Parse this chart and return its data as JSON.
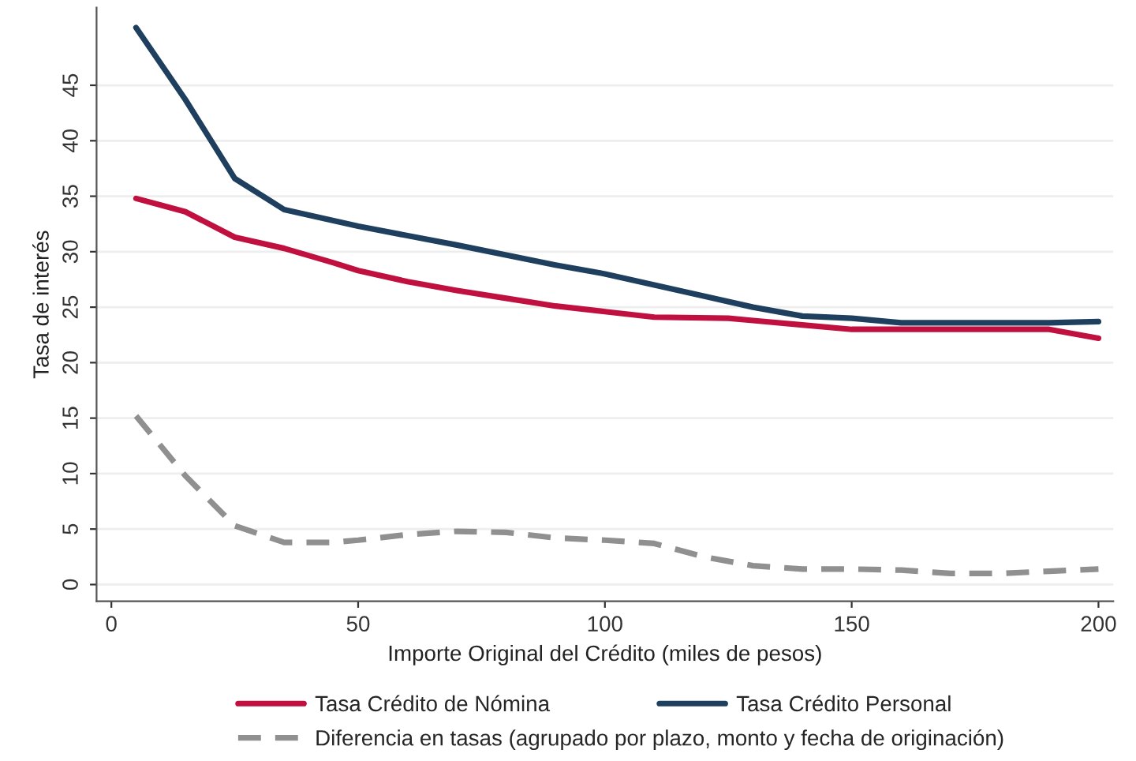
{
  "chart_data": {
    "type": "line",
    "xlabel": "Importe Original del Crédito (miles de pesos)",
    "ylabel": "Tasa de interés",
    "xlim": [
      -3,
      203
    ],
    "xticks": [
      0,
      50,
      100,
      150,
      200
    ],
    "ylim": [
      -1.5,
      52
    ],
    "yticks": [
      0,
      5,
      10,
      15,
      20,
      25,
      30,
      35,
      40,
      45
    ],
    "grid": "y",
    "legend": "bottom",
    "marker": "none",
    "series": [
      {
        "name": "Tasa Crédito de Nómina",
        "color": "#c0103f",
        "line_style": "solid",
        "x": [
          5,
          15,
          25,
          35,
          45,
          50,
          60,
          70,
          80,
          90,
          100,
          110,
          125,
          130,
          140,
          150,
          170,
          190,
          200
        ],
        "values": [
          34.8,
          33.6,
          31.3,
          30.3,
          29.0,
          28.3,
          27.3,
          26.5,
          25.8,
          25.1,
          24.6,
          24.1,
          24.0,
          23.8,
          23.4,
          23.0,
          23.0,
          23.0,
          22.2
        ]
      },
      {
        "name": "Tasa Crédito Personal",
        "color": "#1f3f5f",
        "line_style": "solid",
        "x": [
          5,
          15,
          25,
          35,
          50,
          70,
          90,
          100,
          110,
          120,
          130,
          140,
          150,
          160,
          170,
          190,
          200
        ],
        "values": [
          50.2,
          43.7,
          36.6,
          33.8,
          32.3,
          30.6,
          28.8,
          28.0,
          27.0,
          26.0,
          25.0,
          24.2,
          24.0,
          23.6,
          23.6,
          23.6,
          23.7
        ]
      },
      {
        "name": "Diferencia en tasas (agrupado por plazo, monto y fecha de originación)",
        "color": "#909090",
        "line_style": "dashed",
        "x": [
          5,
          15,
          25,
          35,
          45,
          50,
          60,
          70,
          80,
          90,
          100,
          110,
          120,
          130,
          140,
          150,
          160,
          170,
          180,
          190,
          200
        ],
        "values": [
          15.2,
          9.8,
          5.3,
          3.8,
          3.8,
          4.0,
          4.5,
          4.8,
          4.7,
          4.2,
          4.0,
          3.7,
          2.5,
          1.7,
          1.4,
          1.4,
          1.3,
          1.0,
          1.0,
          1.2,
          1.4
        ]
      }
    ]
  }
}
